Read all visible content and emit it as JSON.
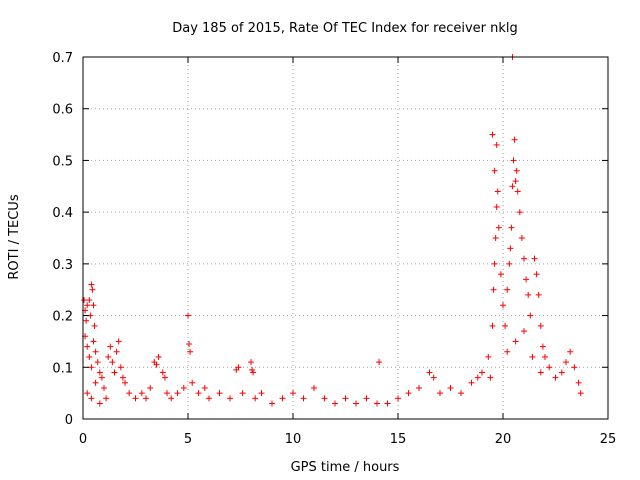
{
  "chart_data": {
    "type": "scatter",
    "title": "Day 185 of 2015, Rate Of TEC Index for receiver nklg",
    "xlabel": "GPS time / hours",
    "ylabel": "ROTI / TECUs",
    "xlim": [
      0,
      25
    ],
    "ylim": [
      0,
      0.7
    ],
    "x_ticks": [
      0,
      5,
      10,
      15,
      20,
      25
    ],
    "x_tick_labels": [
      "0",
      "5",
      "10",
      "15",
      "20",
      "25"
    ],
    "y_ticks": [
      0,
      0.1,
      0.2,
      0.3,
      0.4,
      0.5,
      0.6,
      0.7
    ],
    "y_tick_labels": [
      "0",
      "0.1",
      "0.2",
      "0.3",
      "0.4",
      "0.5",
      "0.6",
      "0.7"
    ],
    "grid": true,
    "marker": "+",
    "marker_color": "#ff0000",
    "series": [
      {
        "name": "ROTI",
        "points": [
          [
            0.05,
            0.23
          ],
          [
            0.1,
            0.21
          ],
          [
            0.15,
            0.19
          ],
          [
            0.2,
            0.22
          ],
          [
            0.3,
            0.23
          ],
          [
            0.35,
            0.2
          ],
          [
            0.4,
            0.26
          ],
          [
            0.45,
            0.25
          ],
          [
            0.5,
            0.22
          ],
          [
            0.55,
            0.18
          ],
          [
            0.1,
            0.16
          ],
          [
            0.2,
            0.14
          ],
          [
            0.3,
            0.12
          ],
          [
            0.4,
            0.1
          ],
          [
            0.5,
            0.15
          ],
          [
            0.6,
            0.13
          ],
          [
            0.7,
            0.11
          ],
          [
            0.8,
            0.09
          ],
          [
            0.9,
            0.08
          ],
          [
            1.0,
            0.06
          ],
          [
            1.2,
            0.12
          ],
          [
            1.3,
            0.14
          ],
          [
            1.4,
            0.11
          ],
          [
            1.5,
            0.09
          ],
          [
            1.6,
            0.13
          ],
          [
            1.7,
            0.15
          ],
          [
            1.8,
            0.1
          ],
          [
            1.9,
            0.08
          ],
          [
            2.0,
            0.07
          ],
          [
            2.2,
            0.05
          ],
          [
            0.2,
            0.05
          ],
          [
            0.4,
            0.04
          ],
          [
            0.6,
            0.07
          ],
          [
            0.8,
            0.03
          ],
          [
            1.1,
            0.04
          ],
          [
            2.5,
            0.04
          ],
          [
            2.8,
            0.05
          ],
          [
            3.0,
            0.04
          ],
          [
            3.2,
            0.06
          ],
          [
            3.4,
            0.11
          ],
          [
            3.5,
            0.105
          ],
          [
            3.6,
            0.12
          ],
          [
            3.8,
            0.09
          ],
          [
            3.9,
            0.08
          ],
          [
            4.0,
            0.05
          ],
          [
            4.2,
            0.04
          ],
          [
            4.5,
            0.05
          ],
          [
            4.8,
            0.06
          ],
          [
            5.0,
            0.2
          ],
          [
            5.05,
            0.145
          ],
          [
            5.1,
            0.13
          ],
          [
            5.2,
            0.07
          ],
          [
            5.5,
            0.05
          ],
          [
            5.8,
            0.06
          ],
          [
            6.0,
            0.04
          ],
          [
            6.5,
            0.05
          ],
          [
            7.0,
            0.04
          ],
          [
            7.3,
            0.095
          ],
          [
            7.4,
            0.1
          ],
          [
            7.6,
            0.05
          ],
          [
            8.0,
            0.11
          ],
          [
            8.05,
            0.095
          ],
          [
            8.1,
            0.09
          ],
          [
            8.2,
            0.04
          ],
          [
            8.5,
            0.05
          ],
          [
            9.0,
            0.03
          ],
          [
            9.5,
            0.04
          ],
          [
            10.0,
            0.05
          ],
          [
            10.5,
            0.04
          ],
          [
            11.0,
            0.06
          ],
          [
            11.5,
            0.04
          ],
          [
            12.0,
            0.03
          ],
          [
            12.5,
            0.04
          ],
          [
            13.0,
            0.03
          ],
          [
            13.5,
            0.04
          ],
          [
            14.0,
            0.03
          ],
          [
            14.1,
            0.11
          ],
          [
            14.5,
            0.03
          ],
          [
            15.0,
            0.04
          ],
          [
            15.5,
            0.05
          ],
          [
            16.0,
            0.06
          ],
          [
            16.5,
            0.09
          ],
          [
            16.7,
            0.08
          ],
          [
            17.0,
            0.05
          ],
          [
            17.5,
            0.06
          ],
          [
            18.0,
            0.05
          ],
          [
            18.5,
            0.07
          ],
          [
            18.8,
            0.08
          ],
          [
            19.0,
            0.09
          ],
          [
            19.3,
            0.12
          ],
          [
            19.5,
            0.18
          ],
          [
            19.55,
            0.25
          ],
          [
            19.6,
            0.3
          ],
          [
            19.65,
            0.35
          ],
          [
            19.7,
            0.41
          ],
          [
            19.75,
            0.44
          ],
          [
            19.5,
            0.55
          ],
          [
            19.6,
            0.48
          ],
          [
            19.7,
            0.53
          ],
          [
            19.8,
            0.37
          ],
          [
            19.9,
            0.28
          ],
          [
            20.0,
            0.22
          ],
          [
            20.1,
            0.18
          ],
          [
            20.2,
            0.25
          ],
          [
            20.3,
            0.3
          ],
          [
            20.35,
            0.33
          ],
          [
            20.4,
            0.37
          ],
          [
            20.45,
            0.45
          ],
          [
            20.5,
            0.5
          ],
          [
            20.55,
            0.54
          ],
          [
            20.6,
            0.46
          ],
          [
            20.65,
            0.48
          ],
          [
            20.7,
            0.44
          ],
          [
            20.8,
            0.4
          ],
          [
            20.9,
            0.35
          ],
          [
            21.0,
            0.31
          ],
          [
            21.1,
            0.27
          ],
          [
            21.2,
            0.24
          ],
          [
            21.3,
            0.2
          ],
          [
            21.5,
            0.31
          ],
          [
            21.6,
            0.28
          ],
          [
            21.7,
            0.24
          ],
          [
            21.8,
            0.18
          ],
          [
            21.9,
            0.14
          ],
          [
            22.0,
            0.12
          ],
          [
            22.2,
            0.1
          ],
          [
            22.5,
            0.08
          ],
          [
            22.8,
            0.09
          ],
          [
            23.0,
            0.11
          ],
          [
            23.2,
            0.13
          ],
          [
            23.4,
            0.1
          ],
          [
            23.6,
            0.07
          ],
          [
            23.7,
            0.05
          ],
          [
            20.45,
            0.7
          ],
          [
            20.2,
            0.13
          ],
          [
            20.6,
            0.15
          ],
          [
            21.0,
            0.17
          ],
          [
            21.4,
            0.12
          ],
          [
            19.4,
            0.08
          ],
          [
            21.8,
            0.09
          ]
        ]
      }
    ]
  }
}
